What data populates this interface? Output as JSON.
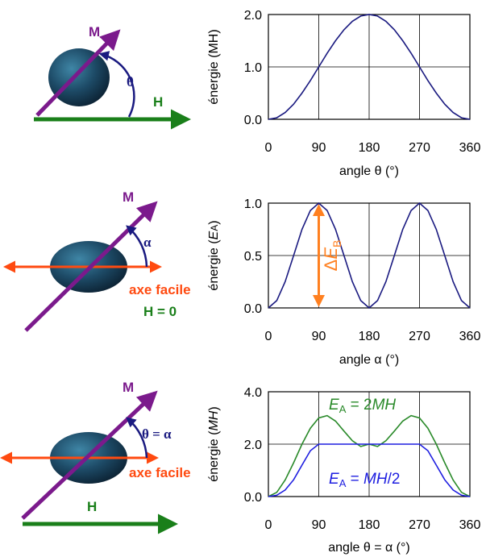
{
  "colors": {
    "magnetization": "#7b1a8c",
    "field": "#1a7f1a",
    "easy_axis": "#ff4a10",
    "curve_navy": "#1a1a80",
    "curve_green": "#2a8a2a",
    "curve_blue": "#1e1ee0",
    "barrier": "#ff8020",
    "particle": "#1d4a66"
  },
  "diagrams": [
    {
      "m_label": "M",
      "h_label": "H",
      "angle_label": "θ"
    },
    {
      "m_label": "M",
      "angle_label": "α",
      "axis_label": "axe facile",
      "h_label": "H = 0"
    },
    {
      "m_label": "M",
      "angle_label": "θ = α",
      "axis_label": "axe facile",
      "h_label": "H"
    }
  ],
  "chart_data": [
    {
      "type": "line",
      "ylabel": "énergie (MH)",
      "xlabel": "angle θ (°)",
      "xlim": [
        0,
        360
      ],
      "ylim": [
        0,
        2
      ],
      "xticks": [
        "0",
        "90",
        "180",
        "270",
        "360"
      ],
      "yticks": [
        "0.0",
        "1.0",
        "2.0"
      ],
      "grid": true,
      "series": [
        {
          "color": "navy",
          "x": [
            0,
            15,
            30,
            45,
            60,
            75,
            90,
            105,
            120,
            135,
            150,
            165,
            180,
            195,
            210,
            225,
            240,
            255,
            270,
            285,
            300,
            315,
            330,
            345,
            360
          ],
          "y": [
            0.0,
            0.03,
            0.13,
            0.29,
            0.5,
            0.74,
            1.0,
            1.26,
            1.5,
            1.71,
            1.87,
            1.97,
            2.0,
            1.97,
            1.87,
            1.71,
            1.5,
            1.26,
            1.0,
            0.74,
            0.5,
            0.29,
            0.13,
            0.03,
            0.0
          ]
        }
      ]
    },
    {
      "type": "line",
      "ylabel_prefix": "énergie (",
      "ylabel_italic": "E",
      "ylabel_sub": "A",
      "ylabel_suffix": ")",
      "xlabel": "angle α (°)",
      "xlim": [
        0,
        360
      ],
      "ylim": [
        0,
        1
      ],
      "xticks": [
        "0",
        "90",
        "180",
        "270",
        "360"
      ],
      "yticks": [
        "0.0",
        "0.5",
        "1.0"
      ],
      "grid": true,
      "annotation": {
        "text_prefix": "Δ",
        "text_italic": "E",
        "text_sub": "B",
        "x": 90,
        "from": 0,
        "to": 1
      },
      "series": [
        {
          "color": "navy",
          "x": [
            0,
            15,
            30,
            45,
            60,
            75,
            90,
            105,
            120,
            135,
            150,
            165,
            180,
            195,
            210,
            225,
            240,
            255,
            270,
            285,
            300,
            315,
            330,
            345,
            360
          ],
          "y": [
            0.0,
            0.07,
            0.25,
            0.5,
            0.75,
            0.93,
            1.0,
            0.93,
            0.75,
            0.5,
            0.25,
            0.07,
            0.0,
            0.07,
            0.25,
            0.5,
            0.75,
            0.93,
            1.0,
            0.93,
            0.75,
            0.5,
            0.25,
            0.07,
            0.0
          ]
        }
      ]
    },
    {
      "type": "line",
      "ylabel_prefix": "énergie (",
      "ylabel_italic": "MH",
      "ylabel_suffix": ")",
      "xlabel": "angle θ = α (°)",
      "xlim": [
        0,
        360
      ],
      "ylim": [
        0,
        4
      ],
      "xticks": [
        "0",
        "90",
        "180",
        "270",
        "360"
      ],
      "yticks": [
        "0.0",
        "2.0",
        "4.0"
      ],
      "grid": true,
      "series": [
        {
          "color": "green",
          "label_italic": "E",
          "label_sub": "A",
          "label_text": " = 2",
          "label_italic2": "MH",
          "label_tail": "",
          "x": [
            0,
            15,
            30,
            45,
            60,
            75,
            90,
            105,
            120,
            135,
            150,
            165,
            180,
            195,
            210,
            225,
            240,
            255,
            270,
            285,
            300,
            315,
            330,
            345,
            360
          ],
          "y": [
            0.0,
            0.16,
            0.63,
            1.29,
            2.0,
            2.61,
            3.0,
            3.09,
            2.88,
            2.5,
            2.13,
            1.91,
            2.0,
            1.91,
            2.13,
            2.5,
            2.88,
            3.09,
            3.0,
            2.61,
            2.0,
            1.29,
            0.63,
            0.16,
            0.0
          ]
        },
        {
          "color": "blue",
          "label_italic": "E",
          "label_sub": "A",
          "label_text": " = ",
          "label_italic2": "MH",
          "label_tail": "/2",
          "x": [
            0,
            15,
            30,
            45,
            60,
            75,
            90,
            105,
            120,
            135,
            150,
            165,
            180,
            195,
            210,
            225,
            240,
            255,
            270,
            285,
            300,
            315,
            330,
            345,
            360
          ],
          "y": [
            0.0,
            0.05,
            0.25,
            0.64,
            1.2,
            1.75,
            2.0,
            2.0,
            2.0,
            2.0,
            2.0,
            2.0,
            2.0,
            2.0,
            2.0,
            2.0,
            2.0,
            2.0,
            2.0,
            1.75,
            1.2,
            0.64,
            0.25,
            0.05,
            0.0
          ]
        }
      ]
    }
  ]
}
